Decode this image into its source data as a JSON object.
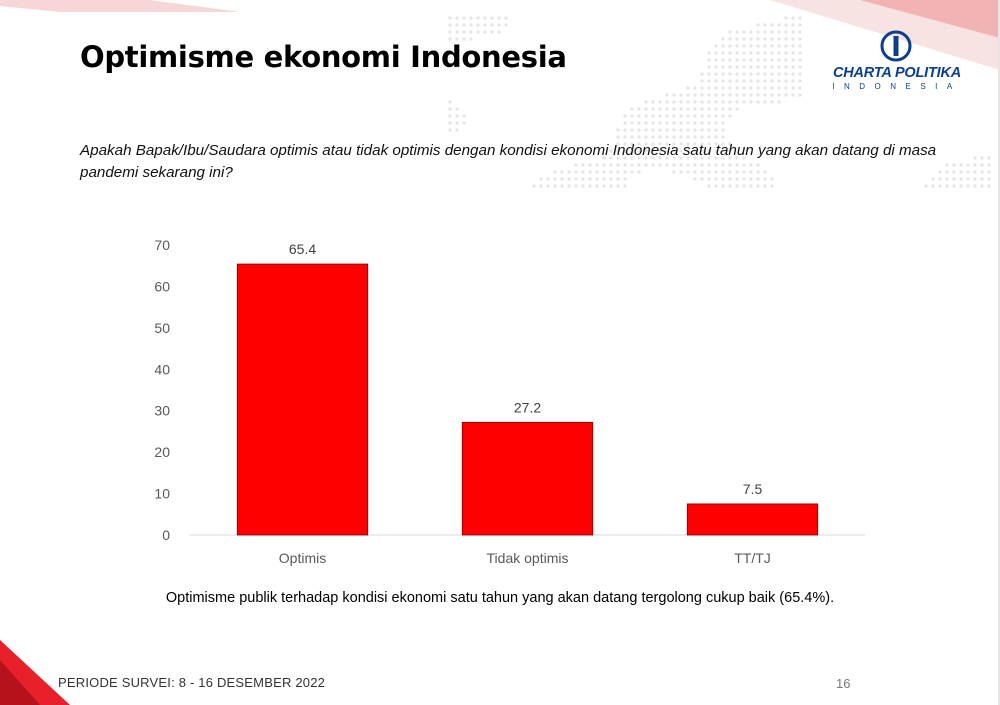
{
  "header": {
    "title": "Optimisme ekonomi Indonesia",
    "question": "Apakah Bapak/Ibu/Saudara optimis atau tidak optimis dengan kondisi ekonomi Indonesia satu tahun yang akan datang di masa pandemi sekarang ini?"
  },
  "logo": {
    "name": "CHARTA POLITIKA",
    "sub": "INDONESIA",
    "icon": "charta-politika-logo-icon"
  },
  "colors": {
    "bar": "#ff0000",
    "accent": "#e8202a",
    "logo_blue": "#0b3e8c"
  },
  "chart_data": {
    "type": "bar",
    "categories": [
      "Optimis",
      "Tidak optimis",
      "TT/TJ"
    ],
    "values": [
      65.4,
      27.2,
      7.5
    ],
    "data_labels": [
      "65.4",
      "27.2",
      "7.5"
    ],
    "yticks": [
      0,
      10,
      20,
      30,
      40,
      50,
      60,
      70
    ],
    "ylim": [
      0,
      70
    ],
    "grid": false,
    "legend": "none",
    "title": "",
    "xlabel": "",
    "ylabel": ""
  },
  "conclusion": "Optimisme publik terhadap kondisi ekonomi satu tahun yang akan datang tergolong cukup baik (65.4%).",
  "footer": {
    "period": "PERIODE SURVEI: 8 - 16 DESEMBER 2022",
    "page_number": "16"
  }
}
